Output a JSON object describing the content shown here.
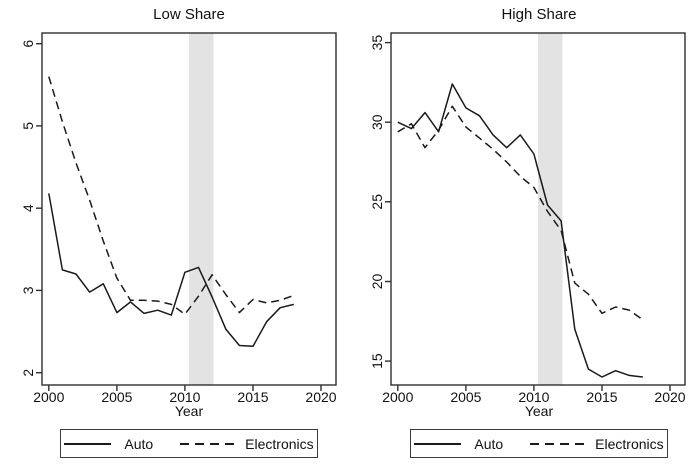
{
  "colors": {
    "line": "#1a1a1a",
    "band": "#e3e3e3",
    "axis": "#2f2f2f",
    "text": "#111111",
    "background": "#ffffff"
  },
  "chart_data": [
    {
      "type": "line",
      "title": "Low Share",
      "xlabel": "Year",
      "x": [
        2000,
        2001,
        2002,
        2003,
        2004,
        2005,
        2006,
        2007,
        2008,
        2009,
        2010,
        2011,
        2012,
        2013,
        2014,
        2015,
        2016,
        2017,
        2018
      ],
      "series": [
        {
          "name": "Auto",
          "line_style": "solid",
          "values": [
            4.18,
            3.25,
            3.2,
            2.98,
            3.08,
            2.73,
            2.86,
            2.72,
            2.76,
            2.7,
            3.22,
            3.28,
            2.92,
            2.53,
            2.33,
            2.32,
            2.62,
            2.79,
            2.83
          ]
        },
        {
          "name": "Electronics",
          "line_style": "dashed",
          "values": [
            5.6,
            5.05,
            4.55,
            4.1,
            3.6,
            3.15,
            2.88,
            2.88,
            2.87,
            2.83,
            2.71,
            2.93,
            3.19,
            2.95,
            2.73,
            2.89,
            2.85,
            2.88,
            2.94
          ]
        }
      ],
      "xticks": [
        2000,
        2005,
        2010,
        2015,
        2020
      ],
      "yticks": [
        2,
        3,
        4,
        5,
        6
      ],
      "xlim": [
        1999.5,
        2021.1
      ],
      "ylim": [
        1.85,
        6.13
      ],
      "shaded_band_x": [
        2010.3,
        2012.1
      ],
      "grid": false,
      "legend_position": "bottom"
    },
    {
      "type": "line",
      "title": "High Share",
      "xlabel": "Year",
      "x": [
        2000,
        2001,
        2002,
        2003,
        2004,
        2005,
        2006,
        2007,
        2008,
        2009,
        2010,
        2011,
        2012,
        2013,
        2014,
        2015,
        2016,
        2017,
        2018
      ],
      "series": [
        {
          "name": "Auto",
          "line_style": "solid",
          "values": [
            30.0,
            29.6,
            30.6,
            29.4,
            32.4,
            30.9,
            30.4,
            29.2,
            28.4,
            29.2,
            28.0,
            24.8,
            23.8,
            17.0,
            14.5,
            14.0,
            14.4,
            14.1,
            14.0
          ]
        },
        {
          "name": "Electronics",
          "line_style": "dashed",
          "values": [
            29.4,
            29.9,
            28.4,
            29.5,
            31.0,
            29.7,
            29.0,
            28.3,
            27.5,
            26.6,
            25.9,
            24.4,
            23.2,
            19.9,
            19.2,
            18.0,
            18.4,
            18.2,
            17.6
          ]
        }
      ],
      "xticks": [
        2000,
        2005,
        2010,
        2015,
        2020
      ],
      "yticks": [
        15,
        20,
        25,
        30,
        35
      ],
      "xlim": [
        1999.5,
        2021.1
      ],
      "ylim": [
        13.5,
        35.6
      ],
      "shaded_band_x": [
        2010.3,
        2012.1
      ],
      "grid": false,
      "legend_position": "bottom"
    }
  ]
}
